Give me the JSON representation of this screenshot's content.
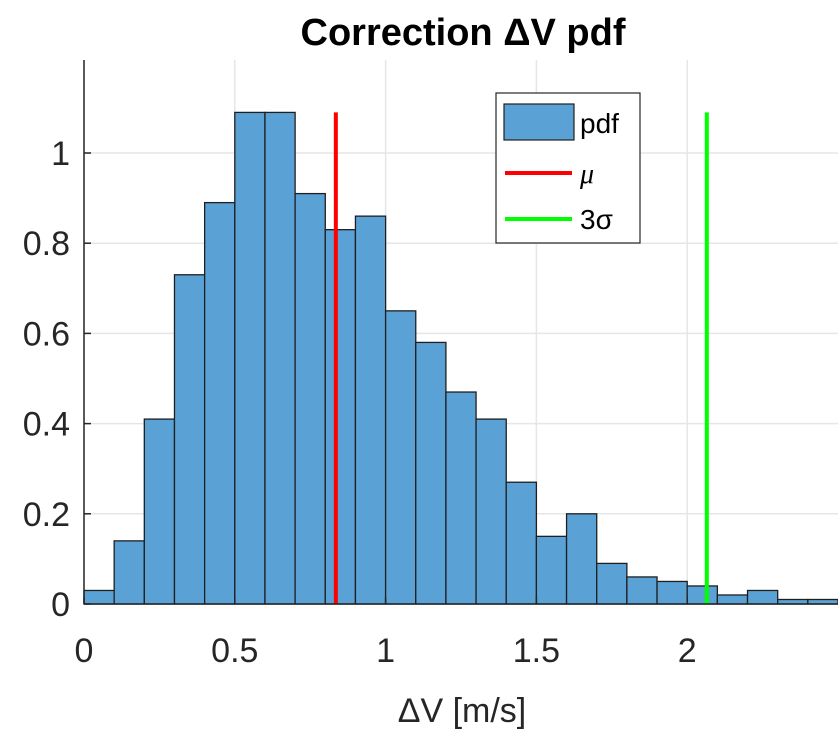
{
  "chart_data": {
    "type": "bar",
    "title": "Correction ΔV pdf",
    "xlabel": "ΔV [m/s]",
    "ylabel": "",
    "xlim": [
      0,
      2.5
    ],
    "ylim": [
      0,
      1.1
    ],
    "grid": true,
    "legend_position": "top-right",
    "xticks": [
      0,
      0.5,
      1,
      1.5,
      2
    ],
    "xtick_labels": [
      "0",
      "0.5",
      "1",
      "1.5",
      "2"
    ],
    "yticks": [
      0,
      0.2,
      0.4,
      0.6,
      0.8,
      1
    ],
    "ytick_labels": [
      "0",
      "0.2",
      "0.4",
      "0.6",
      "0.8",
      "1"
    ],
    "bin_width": 0.1,
    "bin_edges": [
      0.0,
      0.1,
      0.2,
      0.3,
      0.4,
      0.5,
      0.6,
      0.7,
      0.8,
      0.9,
      1.0,
      1.1,
      1.2,
      1.3,
      1.4,
      1.5,
      1.6,
      1.7,
      1.8,
      1.9,
      2.0,
      2.1,
      2.2,
      2.3,
      2.4,
      2.5
    ],
    "series": [
      {
        "name": "pdf",
        "color": "#5aa2d6",
        "values": [
          0.03,
          0.14,
          0.41,
          0.73,
          0.89,
          1.09,
          1.09,
          0.91,
          0.83,
          0.86,
          0.65,
          0.58,
          0.47,
          0.41,
          0.27,
          0.15,
          0.2,
          0.09,
          0.06,
          0.05,
          0.04,
          0.02,
          0.03,
          0.01,
          0.01
        ]
      }
    ],
    "vlines": [
      {
        "name": "μ",
        "legend_label": "μ",
        "x": 0.835,
        "y_top": 1.09,
        "color": "#ff0000"
      },
      {
        "name": "3σ",
        "legend_label": "3σ",
        "x": 2.065,
        "y_top": 1.09,
        "color": "#00ff00"
      }
    ],
    "legend": {
      "pdf": "pdf",
      "mu": "μ",
      "three_sigma": "3σ"
    }
  }
}
